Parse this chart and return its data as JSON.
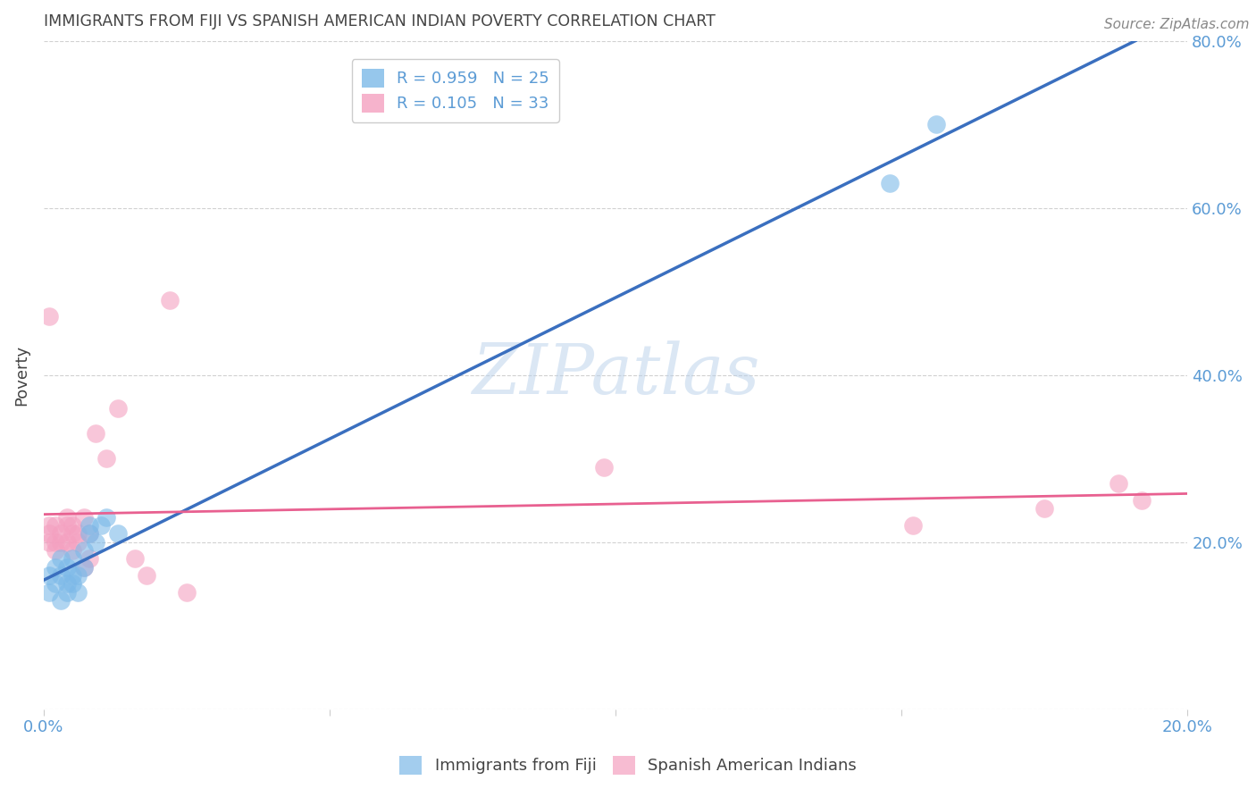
{
  "title": "IMMIGRANTS FROM FIJI VS SPANISH AMERICAN INDIAN POVERTY CORRELATION CHART",
  "source": "Source: ZipAtlas.com",
  "xlabel_ticks": [
    "0.0%",
    "",
    "",
    "",
    "20.0%"
  ],
  "xlabel_tick_vals": [
    0.0,
    0.05,
    0.1,
    0.15,
    0.2
  ],
  "ylabel": "Poverty",
  "ylabel_ticks": [
    "",
    "20.0%",
    "40.0%",
    "60.0%",
    "80.0%"
  ],
  "ylabel_tick_vals": [
    0.0,
    0.2,
    0.4,
    0.6,
    0.8
  ],
  "xlim": [
    0.0,
    0.2
  ],
  "ylim": [
    0.0,
    0.8
  ],
  "blue_R": 0.959,
  "blue_N": 25,
  "pink_R": 0.105,
  "pink_N": 33,
  "blue_color": "#7cb9e8",
  "pink_color": "#f4a0c0",
  "blue_line_color": "#3a6fbf",
  "pink_line_color": "#e86090",
  "watermark": "ZIPatlas",
  "legend_label_blue": "Immigrants from Fiji",
  "legend_label_pink": "Spanish American Indians",
  "blue_scatter_x": [
    0.001,
    0.001,
    0.002,
    0.002,
    0.003,
    0.003,
    0.003,
    0.004,
    0.004,
    0.004,
    0.005,
    0.005,
    0.005,
    0.006,
    0.006,
    0.007,
    0.007,
    0.008,
    0.008,
    0.009,
    0.01,
    0.011,
    0.013,
    0.148,
    0.156
  ],
  "blue_scatter_y": [
    0.14,
    0.16,
    0.15,
    0.17,
    0.13,
    0.16,
    0.18,
    0.15,
    0.17,
    0.14,
    0.16,
    0.18,
    0.15,
    0.16,
    0.14,
    0.17,
    0.19,
    0.21,
    0.22,
    0.2,
    0.22,
    0.23,
    0.21,
    0.63,
    0.7
  ],
  "pink_scatter_x": [
    0.001,
    0.001,
    0.001,
    0.002,
    0.002,
    0.002,
    0.003,
    0.003,
    0.004,
    0.004,
    0.004,
    0.005,
    0.005,
    0.005,
    0.006,
    0.006,
    0.007,
    0.007,
    0.008,
    0.008,
    0.009,
    0.011,
    0.013,
    0.016,
    0.018,
    0.022,
    0.025,
    0.098,
    0.152,
    0.175,
    0.188,
    0.192,
    0.001
  ],
  "pink_scatter_y": [
    0.2,
    0.21,
    0.22,
    0.2,
    0.22,
    0.19,
    0.21,
    0.2,
    0.22,
    0.2,
    0.23,
    0.21,
    0.19,
    0.22,
    0.21,
    0.2,
    0.17,
    0.23,
    0.18,
    0.21,
    0.33,
    0.3,
    0.36,
    0.18,
    0.16,
    0.49,
    0.14,
    0.29,
    0.22,
    0.24,
    0.27,
    0.25,
    0.47
  ],
  "grid_color": "#cccccc",
  "background_color": "#ffffff",
  "title_color": "#444444",
  "tick_label_color": "#5b9bd5"
}
